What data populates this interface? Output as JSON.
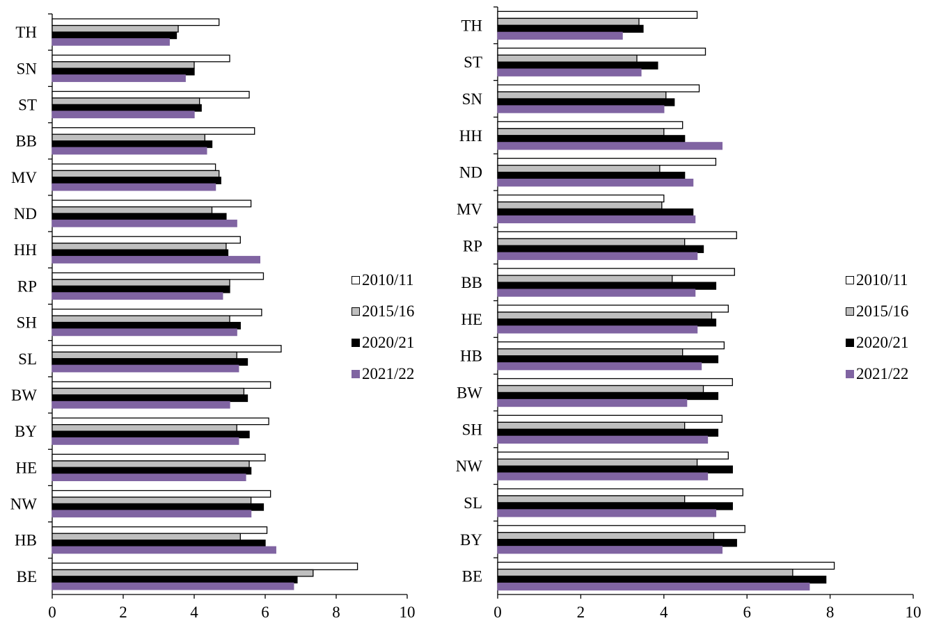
{
  "series_styles": [
    {
      "fill": "#ffffff",
      "stroke": "#000000"
    },
    {
      "fill": "#bfbfbf",
      "stroke": "#000000"
    },
    {
      "fill": "#000000",
      "stroke": "#000000"
    },
    {
      "fill": "#8064a2",
      "stroke": "#8064a2"
    }
  ],
  "chart_data": [
    {
      "type": "bar",
      "orientation": "horizontal",
      "categories": [
        "TH",
        "SN",
        "ST",
        "BB",
        "MV",
        "ND",
        "HH",
        "RP",
        "SH",
        "SL",
        "BW",
        "BY",
        "HE",
        "NW",
        "HB",
        "BE"
      ],
      "series": [
        {
          "name": "2010/11",
          "values": [
            4.7,
            5.0,
            5.55,
            5.7,
            4.6,
            5.6,
            5.3,
            5.95,
            5.9,
            6.45,
            6.15,
            6.1,
            6.0,
            6.15,
            6.05,
            8.6
          ]
        },
        {
          "name": "2015/16",
          "values": [
            3.55,
            4.0,
            4.15,
            4.3,
            4.7,
            4.5,
            4.9,
            5.0,
            5.0,
            5.2,
            5.4,
            5.2,
            5.55,
            5.6,
            5.3,
            7.35
          ]
        },
        {
          "name": "2020/21",
          "values": [
            3.5,
            4.0,
            4.2,
            4.5,
            4.75,
            4.9,
            4.95,
            5.0,
            5.3,
            5.5,
            5.5,
            5.55,
            5.6,
            5.95,
            6.0,
            6.9
          ]
        },
        {
          "name": "2021/22",
          "values": [
            3.3,
            3.75,
            4.0,
            4.35,
            4.6,
            5.2,
            5.85,
            4.8,
            5.2,
            5.25,
            5.0,
            5.25,
            5.45,
            5.6,
            6.3,
            6.8
          ]
        }
      ],
      "xlim": [
        0,
        10
      ],
      "xticks": [
        "0",
        "2",
        "4",
        "6",
        "8",
        "10"
      ],
      "legend_position": "right",
      "title": "",
      "xlabel": "",
      "ylabel": ""
    },
    {
      "type": "bar",
      "orientation": "horizontal",
      "categories": [
        "TH",
        "ST",
        "SN",
        "HH",
        "ND",
        "MV",
        "RP",
        "BB",
        "HE",
        "HB",
        "BW",
        "SH",
        "NW",
        "SL",
        "BY",
        "BE"
      ],
      "series": [
        {
          "name": "2010/11",
          "values": [
            4.8,
            5.0,
            4.85,
            4.45,
            5.25,
            4.0,
            5.75,
            5.7,
            5.55,
            5.45,
            5.65,
            5.4,
            5.55,
            5.9,
            5.95,
            8.1
          ]
        },
        {
          "name": "2015/16",
          "values": [
            3.4,
            3.35,
            4.05,
            4.0,
            3.9,
            3.95,
            4.5,
            4.2,
            5.15,
            4.45,
            4.95,
            4.5,
            4.8,
            4.5,
            5.2,
            7.1
          ]
        },
        {
          "name": "2020/21",
          "values": [
            3.5,
            3.85,
            4.25,
            4.5,
            4.5,
            4.7,
            4.95,
            5.25,
            5.25,
            5.3,
            5.3,
            5.3,
            5.65,
            5.65,
            5.75,
            7.9
          ]
        },
        {
          "name": "2021/22",
          "values": [
            3.0,
            3.45,
            4.0,
            5.4,
            4.7,
            4.75,
            4.8,
            4.75,
            4.8,
            4.9,
            4.55,
            5.05,
            5.05,
            5.25,
            5.4,
            7.5
          ]
        }
      ],
      "xlim": [
        0,
        10
      ],
      "xticks": [
        "0",
        "2",
        "4",
        "6",
        "8",
        "10"
      ],
      "legend_position": "right",
      "title": "",
      "xlabel": "",
      "ylabel": ""
    }
  ]
}
